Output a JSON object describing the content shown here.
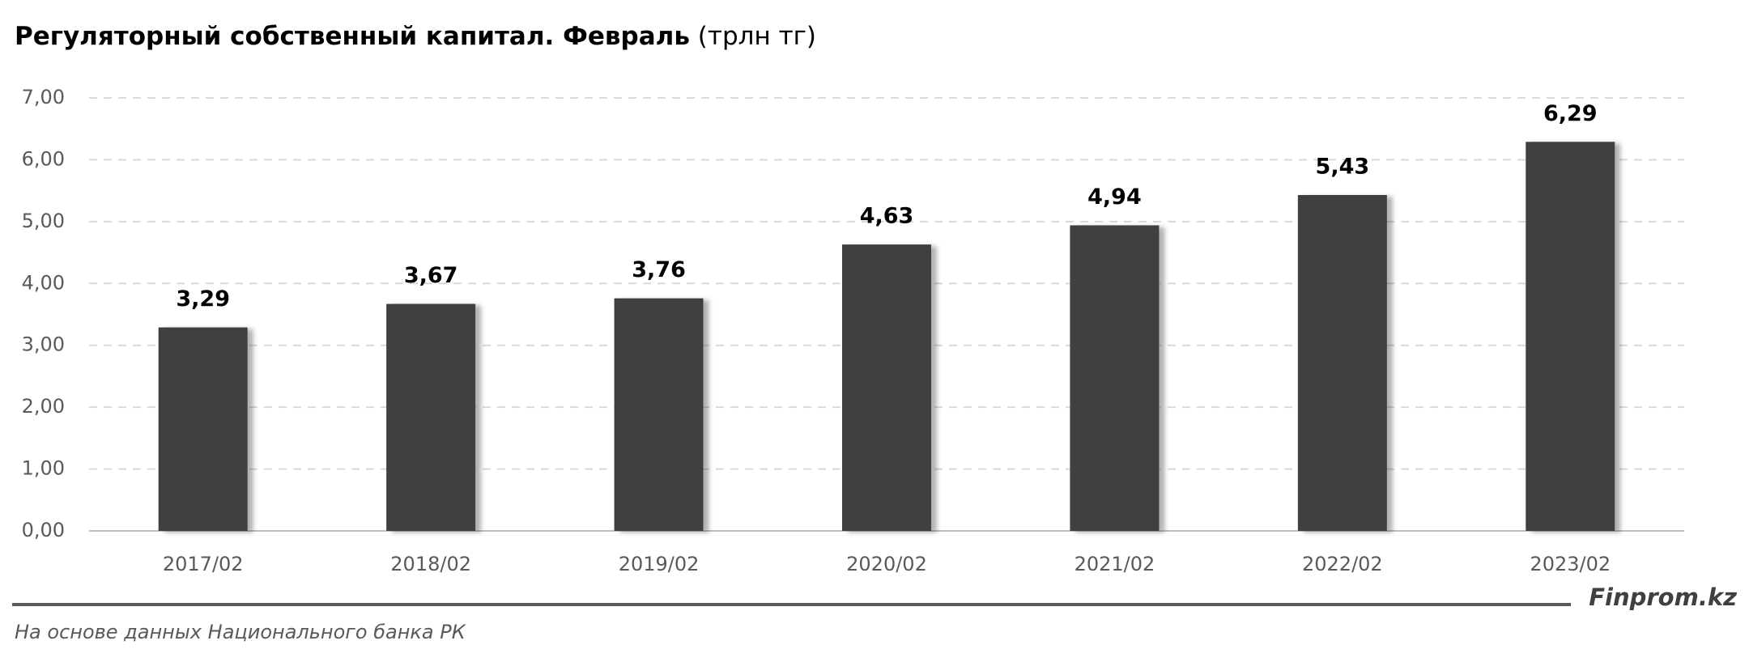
{
  "chart_data": {
    "type": "bar",
    "title": "Регуляторный собственный капитал. Февраль",
    "title_unit": "(трлн тг)",
    "categories": [
      "2017/02",
      "2018/02",
      "2019/02",
      "2020/02",
      "2021/02",
      "2022/02",
      "2023/02"
    ],
    "values": [
      3.29,
      3.67,
      3.76,
      4.63,
      4.94,
      5.43,
      6.29
    ],
    "value_labels": [
      "3,29",
      "3,67",
      "3,76",
      "4,63",
      "4,94",
      "5,43",
      "6,29"
    ],
    "color": "#404040",
    "ylim": [
      0,
      7
    ],
    "yticks": [
      {
        "value": 0,
        "label": "0,00"
      },
      {
        "value": 1,
        "label": "1,00"
      },
      {
        "value": 2,
        "label": "2,00"
      },
      {
        "value": 3,
        "label": "3,00"
      },
      {
        "value": 4,
        "label": "4,00"
      },
      {
        "value": 5,
        "label": "5,00"
      },
      {
        "value": 6,
        "label": "6,00"
      },
      {
        "value": 7,
        "label": "7,00"
      }
    ],
    "grid": true,
    "source": "На основе данных Национального банка РК",
    "brand": "Finprom.kz"
  }
}
